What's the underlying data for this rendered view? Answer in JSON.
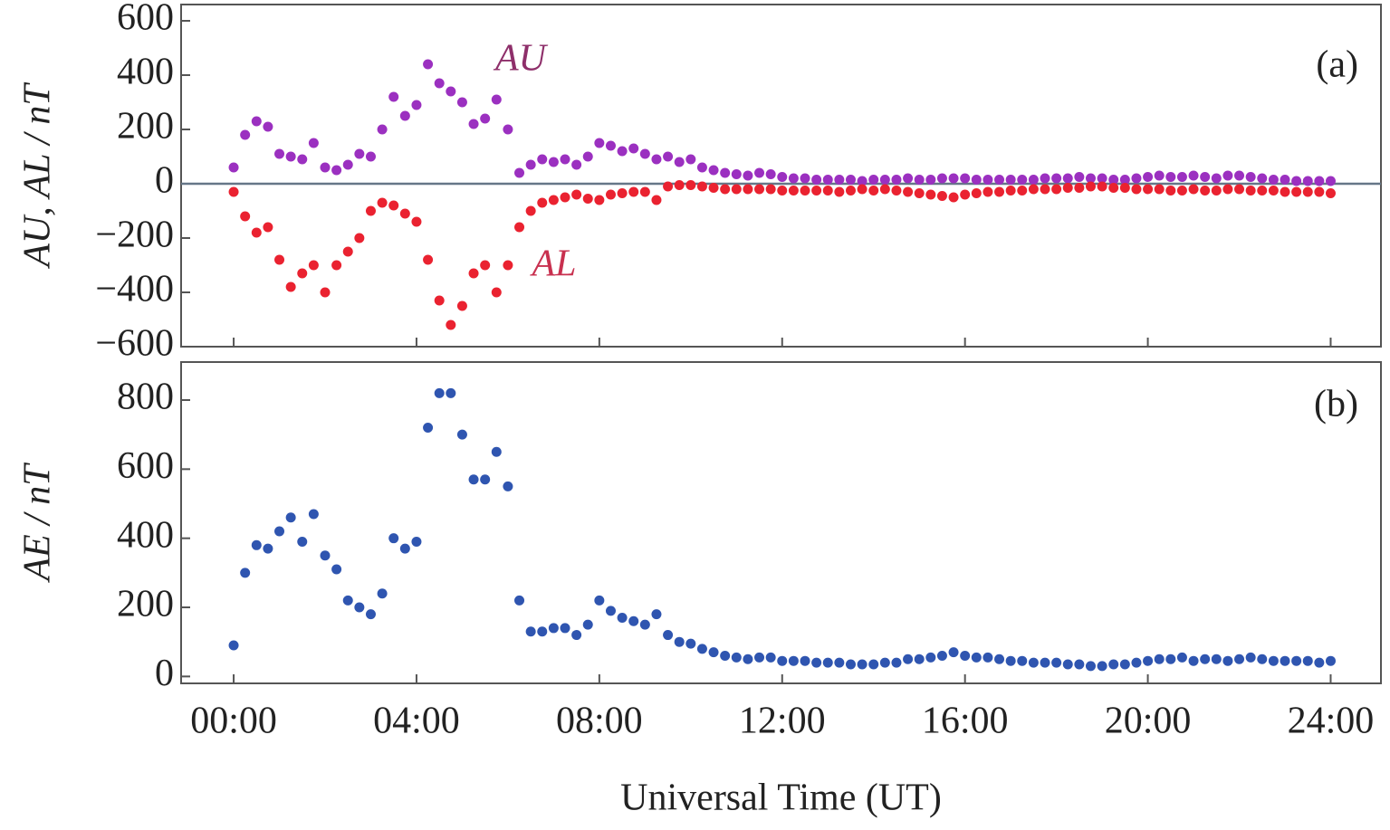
{
  "chart_data": [
    {
      "type": "scatter",
      "panel_label": "(a)",
      "ylabel": "AU, AL / nT",
      "annotations": [
        "AU",
        "AL"
      ],
      "annotation_colors": [
        "#8e2f6a",
        "#c8304f"
      ],
      "x": [
        0,
        0.25,
        0.5,
        0.75,
        1,
        1.25,
        1.5,
        1.75,
        2,
        2.25,
        2.5,
        2.75,
        3,
        3.25,
        3.5,
        3.75,
        4,
        4.25,
        4.5,
        4.75,
        5,
        5.25,
        5.5,
        5.75,
        6,
        6.25,
        6.5,
        6.75,
        7,
        7.25,
        7.5,
        7.75,
        8,
        8.25,
        8.5,
        8.75,
        9,
        9.25,
        9.5,
        9.75,
        10,
        10.25,
        10.5,
        10.75,
        11,
        11.25,
        11.5,
        11.75,
        12,
        12.25,
        12.5,
        12.75,
        13,
        13.25,
        13.5,
        13.75,
        14,
        14.25,
        14.5,
        14.75,
        15,
        15.25,
        15.5,
        15.75,
        16,
        16.25,
        16.5,
        16.75,
        17,
        17.25,
        17.5,
        17.75,
        18,
        18.25,
        18.5,
        18.75,
        19,
        19.25,
        19.5,
        19.75,
        20,
        20.25,
        20.5,
        20.75,
        21,
        21.25,
        21.5,
        21.75,
        22,
        22.25,
        22.5,
        22.75,
        23,
        23.25,
        23.5,
        23.75,
        24
      ],
      "series": [
        {
          "name": "AU",
          "color": "#9b30c0",
          "values": [
            60,
            180,
            230,
            210,
            110,
            100,
            90,
            150,
            60,
            50,
            70,
            110,
            100,
            200,
            320,
            250,
            290,
            440,
            370,
            340,
            300,
            220,
            240,
            310,
            200,
            40,
            70,
            90,
            80,
            90,
            70,
            100,
            150,
            140,
            120,
            130,
            110,
            90,
            100,
            80,
            90,
            60,
            50,
            40,
            35,
            30,
            40,
            35,
            25,
            20,
            20,
            15,
            15,
            15,
            15,
            10,
            15,
            15,
            15,
            20,
            15,
            15,
            20,
            20,
            20,
            15,
            15,
            15,
            15,
            15,
            15,
            20,
            20,
            20,
            25,
            20,
            20,
            15,
            15,
            20,
            25,
            30,
            25,
            25,
            30,
            25,
            20,
            30,
            30,
            25,
            20,
            15,
            15,
            10,
            10,
            10,
            10
          ]
        },
        {
          "name": "AL",
          "color": "#ea2230",
          "values": [
            -30,
            -120,
            -180,
            -160,
            -280,
            -380,
            -330,
            -300,
            -400,
            -300,
            -250,
            -200,
            -100,
            -70,
            -80,
            -110,
            -140,
            -280,
            -430,
            -520,
            -450,
            -330,
            -300,
            -400,
            -300,
            -160,
            -100,
            -70,
            -60,
            -50,
            -40,
            -55,
            -60,
            -40,
            -35,
            -30,
            -30,
            -60,
            -10,
            -5,
            -5,
            -10,
            -15,
            -20,
            -20,
            -20,
            -20,
            -20,
            -25,
            -25,
            -25,
            -25,
            -25,
            -30,
            -25,
            -20,
            -25,
            -20,
            -25,
            -30,
            -35,
            -40,
            -45,
            -50,
            -40,
            -35,
            -30,
            -30,
            -25,
            -25,
            -20,
            -20,
            -20,
            -15,
            -15,
            -10,
            -10,
            -15,
            -15,
            -20,
            -20,
            -20,
            -25,
            -25,
            -20,
            -25,
            -25,
            -20,
            -20,
            -25,
            -25,
            -25,
            -30,
            -30,
            -30,
            -30,
            -35
          ]
        }
      ],
      "xlim": [
        -1.15,
        25.1
      ],
      "ylim": [
        -600,
        660
      ],
      "xticks": [
        {
          "value": 0,
          "label": "00:00"
        },
        {
          "value": 4,
          "label": "04:00"
        },
        {
          "value": 8,
          "label": "08:00"
        },
        {
          "value": 12,
          "label": "12:00"
        },
        {
          "value": 16,
          "label": "16:00"
        },
        {
          "value": 20,
          "label": "20:00"
        },
        {
          "value": 24,
          "label": "24:00"
        }
      ],
      "yticks": [
        {
          "value": -600,
          "label": "−600"
        },
        {
          "value": -400,
          "label": "−400"
        },
        {
          "value": -200,
          "label": "−200"
        },
        0,
        200,
        400,
        600
      ],
      "zero_line": true
    },
    {
      "type": "scatter",
      "panel_label": "(b)",
      "ylabel": "AE / nT",
      "xlabel": "Universal Time (UT)",
      "x": [
        0,
        0.25,
        0.5,
        0.75,
        1,
        1.25,
        1.5,
        1.75,
        2,
        2.25,
        2.5,
        2.75,
        3,
        3.25,
        3.5,
        3.75,
        4,
        4.25,
        4.5,
        4.75,
        5,
        5.25,
        5.5,
        5.75,
        6,
        6.25,
        6.5,
        6.75,
        7,
        7.25,
        7.5,
        7.75,
        8,
        8.25,
        8.5,
        8.75,
        9,
        9.25,
        9.5,
        9.75,
        10,
        10.25,
        10.5,
        10.75,
        11,
        11.25,
        11.5,
        11.75,
        12,
        12.25,
        12.5,
        12.75,
        13,
        13.25,
        13.5,
        13.75,
        14,
        14.25,
        14.5,
        14.75,
        15,
        15.25,
        15.5,
        15.75,
        16,
        16.25,
        16.5,
        16.75,
        17,
        17.25,
        17.5,
        17.75,
        18,
        18.25,
        18.5,
        18.75,
        19,
        19.25,
        19.5,
        19.75,
        20,
        20.25,
        20.5,
        20.75,
        21,
        21.25,
        21.5,
        21.75,
        22,
        22.25,
        22.5,
        22.75,
        23,
        23.25,
        23.5,
        23.75,
        24
      ],
      "series": [
        {
          "name": "AE",
          "color": "#2f55b0",
          "values": [
            90,
            300,
            380,
            370,
            420,
            460,
            390,
            470,
            350,
            310,
            220,
            200,
            180,
            240,
            400,
            370,
            390,
            720,
            820,
            820,
            700,
            570,
            570,
            650,
            550,
            220,
            130,
            130,
            140,
            140,
            120,
            150,
            220,
            190,
            170,
            160,
            150,
            180,
            120,
            100,
            95,
            80,
            70,
            60,
            55,
            50,
            55,
            55,
            45,
            45,
            45,
            40,
            40,
            40,
            35,
            35,
            35,
            40,
            40,
            50,
            50,
            55,
            60,
            70,
            60,
            55,
            55,
            50,
            45,
            45,
            40,
            40,
            40,
            35,
            35,
            30,
            30,
            35,
            35,
            40,
            45,
            50,
            50,
            55,
            45,
            50,
            50,
            45,
            50,
            55,
            50,
            45,
            45,
            45,
            45,
            40,
            45
          ]
        }
      ],
      "xlim": [
        -1.15,
        25.1
      ],
      "ylim": [
        -20,
        910
      ],
      "xticks": [
        {
          "value": 0,
          "label": "00:00"
        },
        {
          "value": 4,
          "label": "04:00"
        },
        {
          "value": 8,
          "label": "08:00"
        },
        {
          "value": 12,
          "label": "12:00"
        },
        {
          "value": 16,
          "label": "16:00"
        },
        {
          "value": 20,
          "label": "20:00"
        },
        {
          "value": 24,
          "label": "24:00"
        }
      ],
      "yticks": [
        0,
        200,
        400,
        600,
        800
      ]
    }
  ]
}
